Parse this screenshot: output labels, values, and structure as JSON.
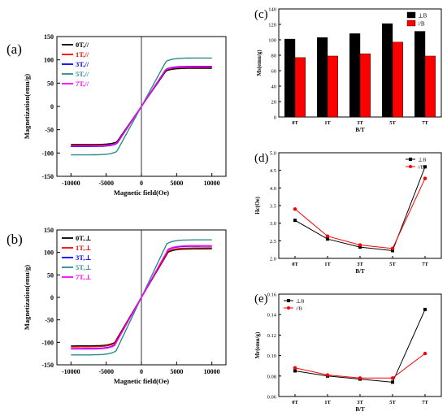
{
  "figure": {
    "panel_labels": [
      "(a)",
      "(b)",
      "(c)",
      "(d)",
      "(e)"
    ]
  },
  "chart_data": [
    {
      "panel": "(a)",
      "type": "line",
      "xlabel": "Magnetic field(Oe)",
      "ylabel": "Magnetization(emu/g)",
      "xlim": [
        -12000,
        12000
      ],
      "ylim": [
        -150,
        150
      ],
      "xticks": [
        -10000,
        -5000,
        0,
        5000,
        10000
      ],
      "yticks": [
        -150,
        -100,
        -50,
        0,
        50,
        100,
        150
      ],
      "legend_position": "top-left",
      "series": [
        {
          "name": "0T,//",
          "color": "#000000",
          "ms": 82,
          "knee": 3500
        },
        {
          "name": "1T,//",
          "color": "#ff0000",
          "ms": 84,
          "knee": 3400
        },
        {
          "name": "3T,//",
          "color": "#0000ff",
          "ms": 86,
          "knee": 3500
        },
        {
          "name": "5T,//",
          "color": "#2e8b8b",
          "ms": 104,
          "knee": 3500
        },
        {
          "name": "7T,//",
          "color": "#ff00ff",
          "ms": 85,
          "knee": 3500
        }
      ]
    },
    {
      "panel": "(b)",
      "type": "line",
      "xlabel": "Magnetic field(Oe)",
      "ylabel": "Magnetization(emu/g)",
      "xlim": [
        -12000,
        12000
      ],
      "ylim": [
        -150,
        150
      ],
      "xticks": [
        -10000,
        -5000,
        0,
        5000,
        10000
      ],
      "yticks": [
        -150,
        -100,
        -50,
        0,
        50,
        100,
        150
      ],
      "legend_position": "top-left",
      "series": [
        {
          "name": "0T,⊥",
          "color": "#000000",
          "ms": 108,
          "knee": 3800
        },
        {
          "name": "1T,⊥",
          "color": "#ff0000",
          "ms": 110,
          "knee": 3800
        },
        {
          "name": "3T,⊥",
          "color": "#0000ff",
          "ms": 114,
          "knee": 3800
        },
        {
          "name": "5T,⊥",
          "color": "#2e8b8b",
          "ms": 128,
          "knee": 3600
        },
        {
          "name": "7T,⊥",
          "color": "#ff00ff",
          "ms": 115,
          "knee": 3800
        }
      ]
    },
    {
      "panel": "(c)",
      "type": "bar",
      "xlabel": "B/T",
      "ylabel": "Ms(emu/g)",
      "categories": [
        "0T",
        "1T",
        "3T",
        "5T",
        "7T"
      ],
      "ylim": [
        0,
        140
      ],
      "yticks": [
        0,
        20,
        40,
        60,
        80,
        100,
        120,
        140
      ],
      "legend_position": "top-right",
      "series": [
        {
          "name": "⊥B",
          "color": "#000000",
          "values": [
            101,
            103,
            108,
            121,
            111
          ]
        },
        {
          "name": "//B",
          "color": "#ff0000",
          "values": [
            77,
            79,
            82,
            97,
            79
          ]
        }
      ]
    },
    {
      "panel": "(d)",
      "type": "line",
      "xlabel": "B/T",
      "ylabel": "Hc(Oe)",
      "categories": [
        "0T",
        "1T",
        "3T",
        "5T",
        "7T"
      ],
      "ylim": [
        2.0,
        5.0
      ],
      "yticks": [
        "2.0",
        "2.5",
        "3.0",
        "3.5",
        "4.0",
        "4.5",
        "5.0"
      ],
      "legend_position": "top-right",
      "series": [
        {
          "name": "⊥B",
          "color": "#000000",
          "values": [
            3.08,
            2.55,
            2.32,
            2.22,
            4.6
          ]
        },
        {
          "name": "//B",
          "color": "#ff0000",
          "values": [
            3.4,
            2.63,
            2.38,
            2.28,
            4.27
          ]
        }
      ]
    },
    {
      "panel": "(e)",
      "type": "line",
      "xlabel": "B/T",
      "ylabel": "Mr(emu/g)",
      "categories": [
        "0T",
        "1T",
        "3T",
        "5T",
        "7T"
      ],
      "ylim": [
        0.06,
        0.16
      ],
      "yticks": [
        "0.06",
        "0.08",
        "0.10",
        "0.12",
        "0.14",
        "0.16"
      ],
      "legend_position": "top-left",
      "series": [
        {
          "name": "⊥B",
          "color": "#000000",
          "values": [
            0.085,
            0.08,
            0.077,
            0.074,
            0.145
          ]
        },
        {
          "name": "//B",
          "color": "#ff0000",
          "values": [
            0.088,
            0.081,
            0.078,
            0.078,
            0.102
          ]
        }
      ]
    }
  ]
}
